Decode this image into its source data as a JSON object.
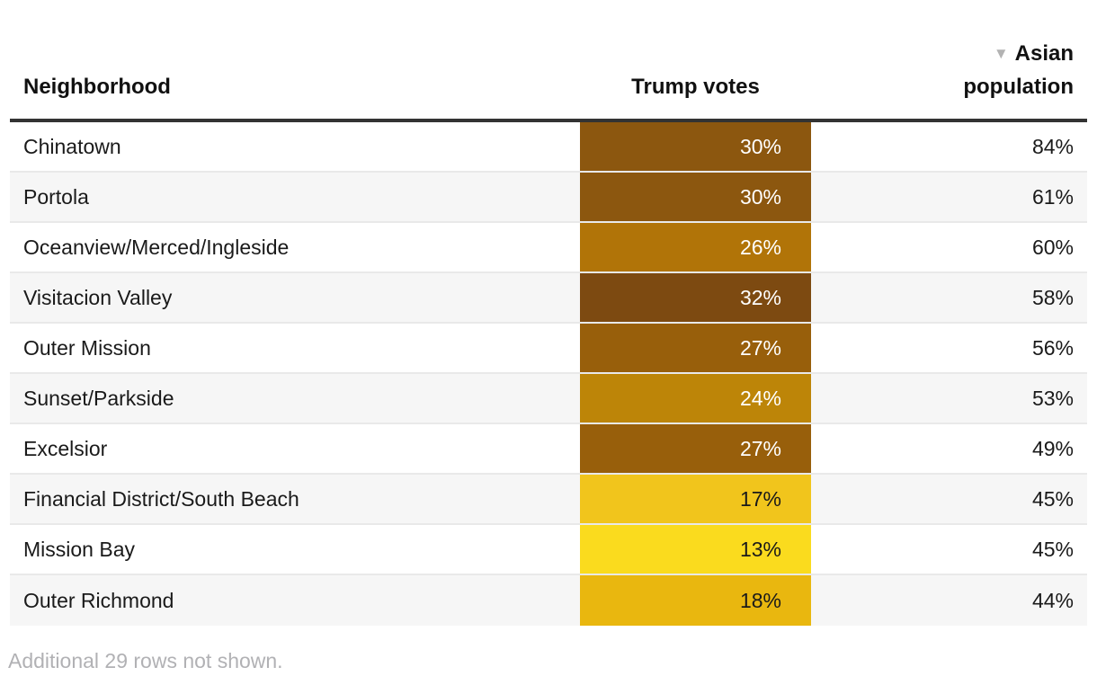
{
  "chart_data": {
    "type": "table",
    "title": "",
    "sort": {
      "column": "Asian population",
      "direction": "desc"
    },
    "columns": [
      "Neighborhood",
      "Trump votes",
      "Asian population"
    ],
    "categories": [
      "Chinatown",
      "Portola",
      "Oceanview/Merced/Ingleside",
      "Visitacion Valley",
      "Outer Mission",
      "Sunset/Parkside",
      "Excelsior",
      "Financial District/South Beach",
      "Mission Bay",
      "Outer Richmond"
    ],
    "series": [
      {
        "name": "Trump votes (%)",
        "values": [
          30,
          30,
          26,
          32,
          27,
          24,
          27,
          17,
          13,
          18
        ]
      },
      {
        "name": "Asian population (%)",
        "values": [
          84,
          61,
          60,
          58,
          56,
          53,
          49,
          45,
          45,
          44
        ]
      }
    ],
    "heatmap_column": "Trump votes",
    "footnote": "Additional 29 rows not shown."
  },
  "header": {
    "neighborhood": "Neighborhood",
    "trump_votes": "Trump votes",
    "sort_icon": "▼",
    "asian_line1": "Asian",
    "asian_line2": "population"
  },
  "table": {
    "rows": [
      {
        "neighborhood": "Chinatown",
        "trump_votes": "30%",
        "asian_population": "84%",
        "cell_color": "#8C570F",
        "text_color": "#ffffff"
      },
      {
        "neighborhood": "Portola",
        "trump_votes": "30%",
        "asian_population": "61%",
        "cell_color": "#8C570F",
        "text_color": "#ffffff"
      },
      {
        "neighborhood": "Oceanview/Merced/Ingleside",
        "trump_votes": "26%",
        "asian_population": "60%",
        "cell_color": "#B17408",
        "text_color": "#ffffff"
      },
      {
        "neighborhood": "Visitacion Valley",
        "trump_votes": "32%",
        "asian_population": "58%",
        "cell_color": "#7D4A11",
        "text_color": "#ffffff"
      },
      {
        "neighborhood": "Outer Mission",
        "trump_votes": "27%",
        "asian_population": "56%",
        "cell_color": "#985F0B",
        "text_color": "#ffffff"
      },
      {
        "neighborhood": "Sunset/Parkside",
        "trump_votes": "24%",
        "asian_population": "53%",
        "cell_color": "#BD8508",
        "text_color": "#ffffff"
      },
      {
        "neighborhood": "Excelsior",
        "trump_votes": "27%",
        "asian_population": "49%",
        "cell_color": "#985F0B",
        "text_color": "#ffffff"
      },
      {
        "neighborhood": "Financial District/South Beach",
        "trump_votes": "17%",
        "asian_population": "45%",
        "cell_color": "#F1C51C",
        "text_color": "#1a1a1a"
      },
      {
        "neighborhood": "Mission Bay",
        "trump_votes": "13%",
        "asian_population": "45%",
        "cell_color": "#FADB1E",
        "text_color": "#1a1a1a"
      },
      {
        "neighborhood": "Outer Richmond",
        "trump_votes": "18%",
        "asian_population": "44%",
        "cell_color": "#E9B70F",
        "text_color": "#1a1a1a"
      }
    ]
  },
  "footer": {
    "note": "Additional 29 rows not shown."
  },
  "colors": {
    "header_rule": "#333333",
    "row_separator": "#e9e9e9",
    "zebra_stripe": "#f6f6f6",
    "sort_icon": "#b3b3b3",
    "footer_text": "#b1b1b4"
  }
}
